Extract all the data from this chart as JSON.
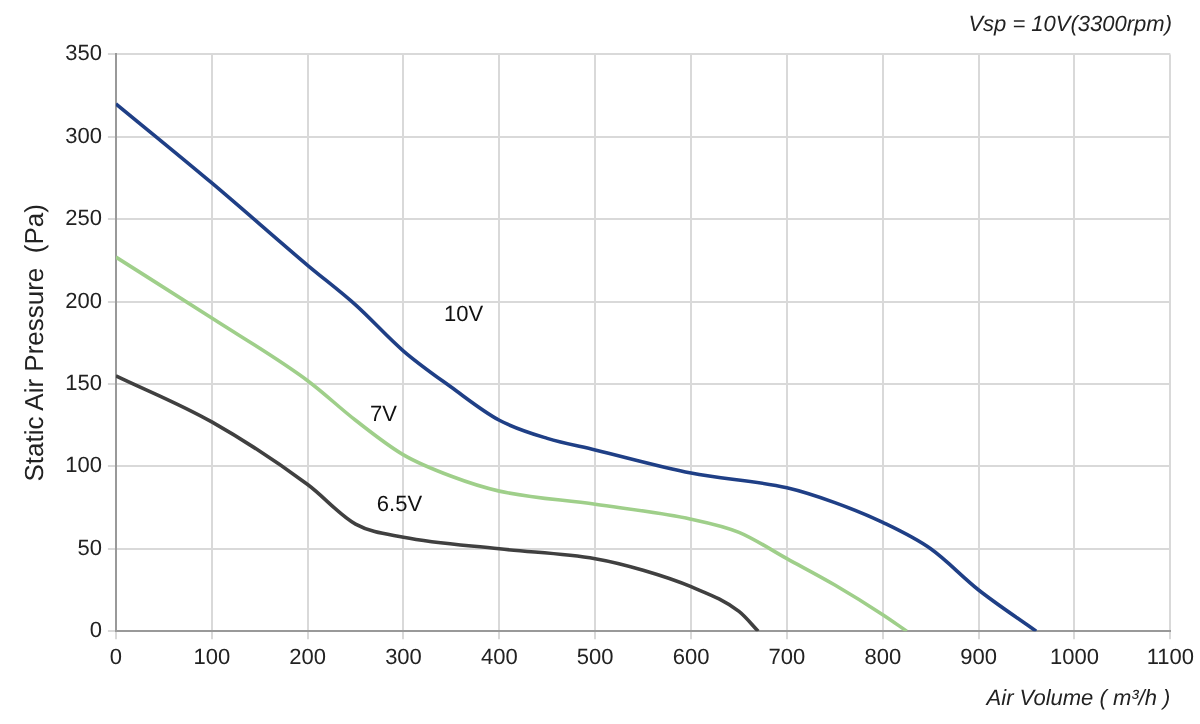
{
  "chart_data": {
    "type": "line",
    "subtitle": "Vsp = 10V(3300rpm)",
    "xlabel": "Air Volume ( m³/h )",
    "ylabel": "Static Air Pressure  (Pa)",
    "xlim": [
      0,
      1100
    ],
    "xticks": [
      0,
      100,
      200,
      300,
      400,
      500,
      600,
      700,
      800,
      900,
      1000,
      1100
    ],
    "ylim": [
      0,
      350
    ],
    "yticks": [
      0,
      50,
      100,
      150,
      200,
      250,
      300,
      350
    ],
    "grid": true,
    "marker": "none",
    "line_style": "solid",
    "series": [
      {
        "name": "10V",
        "color": "#1f3f86",
        "x": [
          0,
          100,
          200,
          250,
          300,
          350,
          400,
          450,
          500,
          600,
          700,
          750,
          800,
          850,
          900,
          960
        ],
        "values": [
          320,
          272,
          222,
          198,
          170,
          148,
          128,
          117,
          110,
          96,
          87,
          78,
          66,
          50,
          25,
          0
        ]
      },
      {
        "name": "7V",
        "color": "#9fcf8a",
        "x": [
          0,
          100,
          200,
          250,
          300,
          350,
          400,
          500,
          600,
          650,
          700,
          750,
          800,
          825
        ],
        "values": [
          227,
          190,
          152,
          128,
          107,
          94,
          85,
          77,
          68,
          60,
          44,
          28,
          10,
          0
        ]
      },
      {
        "name": "6.5V",
        "color": "#404040",
        "x": [
          0,
          100,
          200,
          250,
          300,
          400,
          500,
          550,
          600,
          650,
          670
        ],
        "values": [
          155,
          127,
          89,
          65,
          57,
          50,
          44,
          37,
          27,
          12,
          0
        ]
      }
    ]
  }
}
